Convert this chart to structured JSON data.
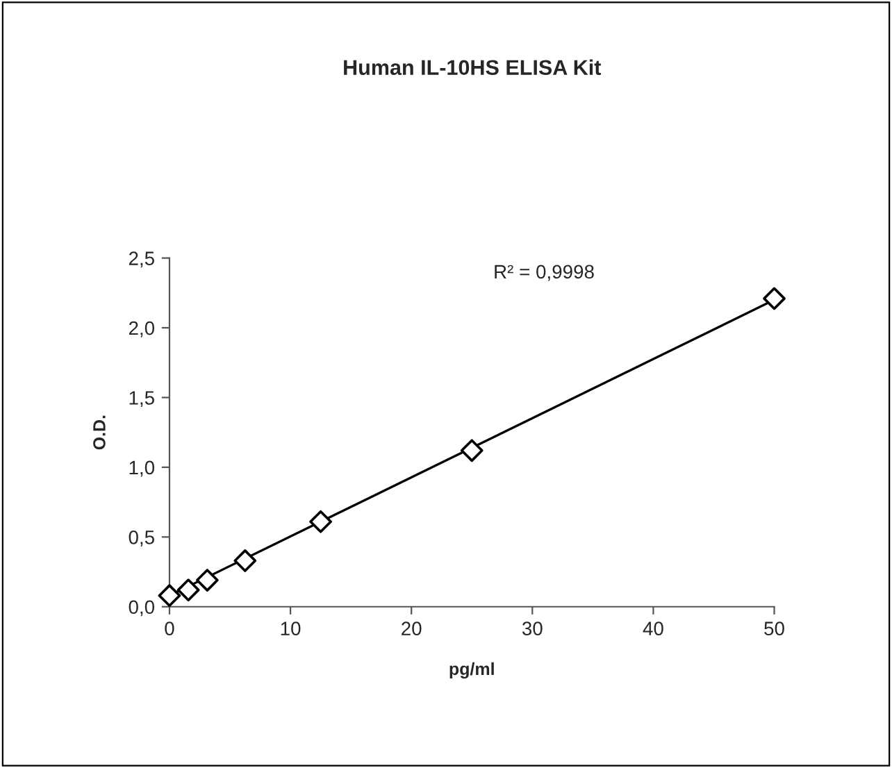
{
  "chart_data": {
    "type": "scatter",
    "title": "Human IL-10HS ELISA Kit",
    "xlabel": "pg/ml",
    "ylabel": "O.D.",
    "xlim": [
      0,
      50
    ],
    "xticks": [
      0,
      10,
      20,
      30,
      40,
      50
    ],
    "ylim": [
      0,
      2.5
    ],
    "yticks": [
      {
        "value": 0,
        "label": "0,0"
      },
      {
        "value": 0.5,
        "label": "0,5"
      },
      {
        "value": 1,
        "label": "1,0"
      },
      {
        "value": 1.5,
        "label": "1,5"
      },
      {
        "value": 2,
        "label": "2,0"
      },
      {
        "value": 2.5,
        "label": "2,5"
      }
    ],
    "series": [
      {
        "color": "#000000",
        "x": [
          0,
          1.5625,
          3.125,
          6.25,
          12.5,
          25,
          50
        ],
        "values": [
          0.08,
          0.12,
          0.19,
          0.33,
          0.61,
          1.12,
          2.21
        ],
        "marker": "diamond"
      },
      {
        "type": "line",
        "color": "#000000",
        "x": [
          0,
          50
        ],
        "values": [
          0.08,
          2.2
        ],
        "marker": "none",
        "line_style": "solid"
      }
    ],
    "annotations": [
      "R² = 0,9998"
    ],
    "grid": false,
    "legend": false
  }
}
